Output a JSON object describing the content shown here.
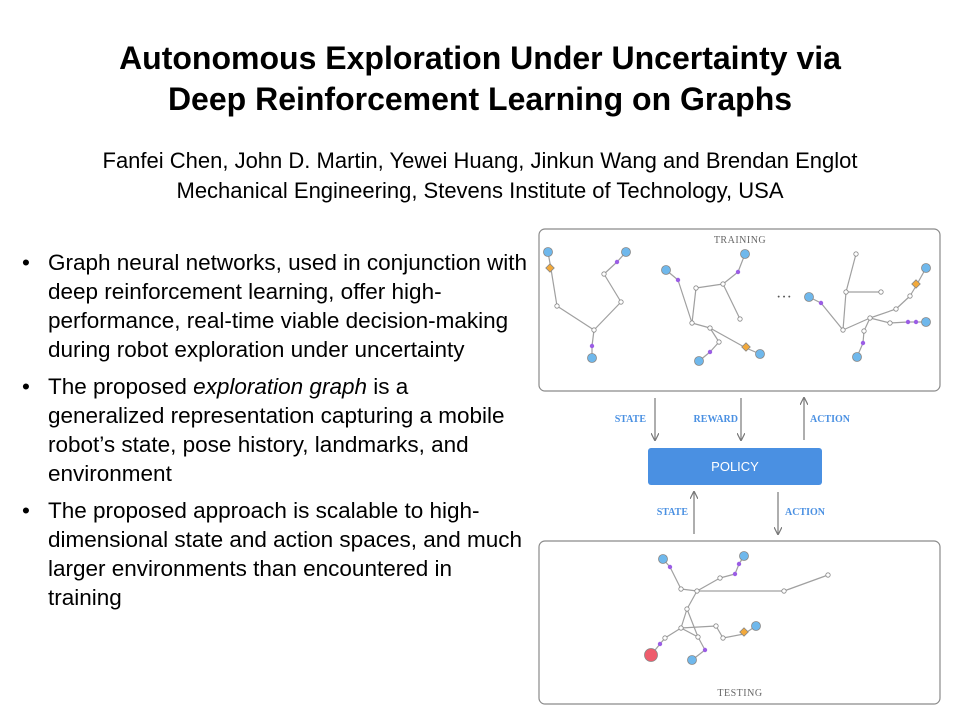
{
  "title": {
    "line1": "Autonomous Exploration Under Uncertainty via",
    "line2": "Deep Reinforcement Learning on Graphs"
  },
  "authors": {
    "names": "Fanfei Chen, John D. Martin, Yewei Huang, Jinkun Wang and Brendan Englot",
    "affiliation": "Mechanical Engineering, Stevens Institute of Technology, USA"
  },
  "bullets": [
    {
      "text": "Graph neural networks, used in conjunction with deep reinforcement learning, offer high-performance, real-time viable decision-making during robot exploration under uncertainty"
    },
    {
      "pre": "The proposed ",
      "em": "exploration graph",
      "post": " is a generalized representation capturing a mobile robot’s state, pose history, landmarks, and environment"
    },
    {
      "text": "The proposed approach is scalable to high-dimensional state and action spaces, and much larger environments than encountered in training"
    }
  ],
  "bullet_symbol": "•",
  "diagram": {
    "training_label": "TRAINING",
    "testing_label": "TESTING",
    "ellipsis": "···",
    "policy_label": "POLICY",
    "arrows_top": {
      "state": "STATE",
      "reward": "REWARD",
      "action": "ACTION"
    },
    "arrows_bottom": {
      "state": "STATE",
      "action": "ACTION"
    },
    "colors": {
      "policy_fill": "#4a90e2",
      "node_blue": "#6fb8ec",
      "node_purple": "#9b5de5",
      "node_orange": "#f2a93b",
      "node_red": "#ee5c6c",
      "edge": "#a0a0a0",
      "panel_border": "#8a8a8a"
    }
  }
}
